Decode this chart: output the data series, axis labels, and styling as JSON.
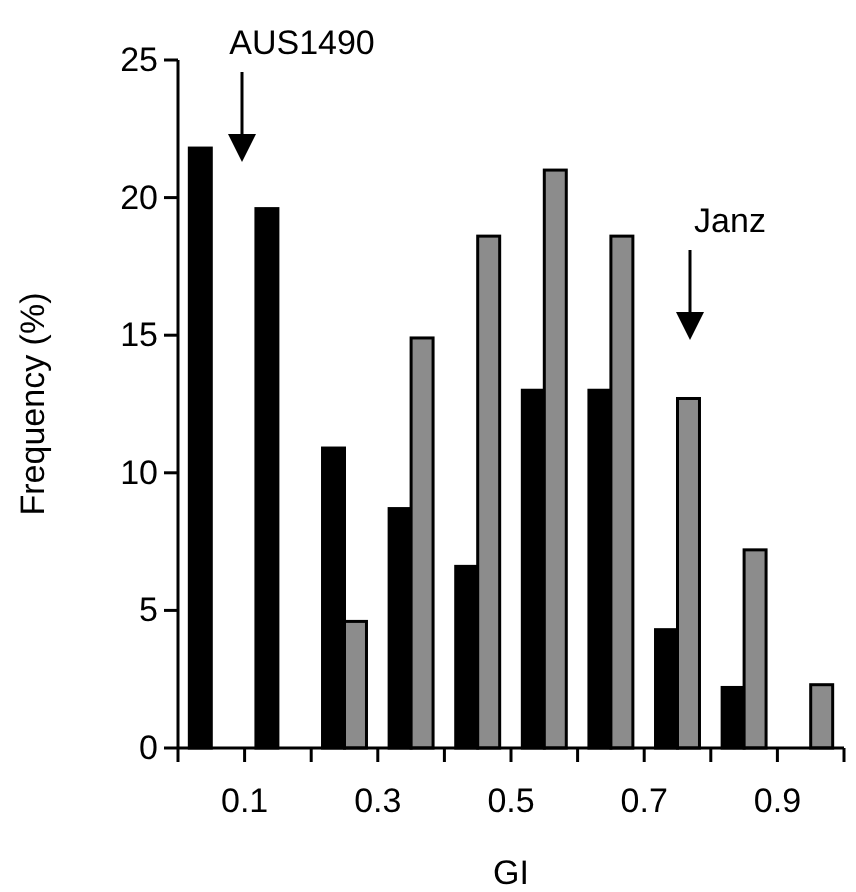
{
  "chart_data": {
    "type": "bar",
    "xlabel": "GI",
    "ylabel": "Frequency (%)",
    "x": [
      0.05,
      0.15,
      0.25,
      0.35,
      0.45,
      0.55,
      0.65,
      0.75,
      0.85,
      0.95
    ],
    "series": [
      {
        "color": "#000000",
        "values": [
          21.8,
          19.6,
          10.9,
          8.7,
          6.6,
          13.0,
          13.0,
          4.3,
          2.2,
          0
        ]
      },
      {
        "color": "#8c8c8c",
        "values": [
          0,
          0,
          4.6,
          14.9,
          18.6,
          21.0,
          18.6,
          12.7,
          7.2,
          2.3
        ]
      }
    ],
    "xlim": [
      0,
      1
    ],
    "xticks": [
      {
        "value": 0,
        "label": null
      },
      0.1,
      {
        "value": 0.2,
        "label": null
      },
      0.3,
      {
        "value": 0.4,
        "label": null
      },
      0.5,
      {
        "value": 0.6,
        "label": null
      },
      0.7,
      {
        "value": 0.8,
        "label": null
      },
      0.9,
      {
        "value": 1.0,
        "label": null
      }
    ],
    "ylim": [
      0,
      25
    ],
    "yticks": [
      0,
      5,
      10,
      15,
      20,
      25
    ],
    "annotations": [
      "AUS1490",
      "Janz"
    ],
    "grid": false
  }
}
